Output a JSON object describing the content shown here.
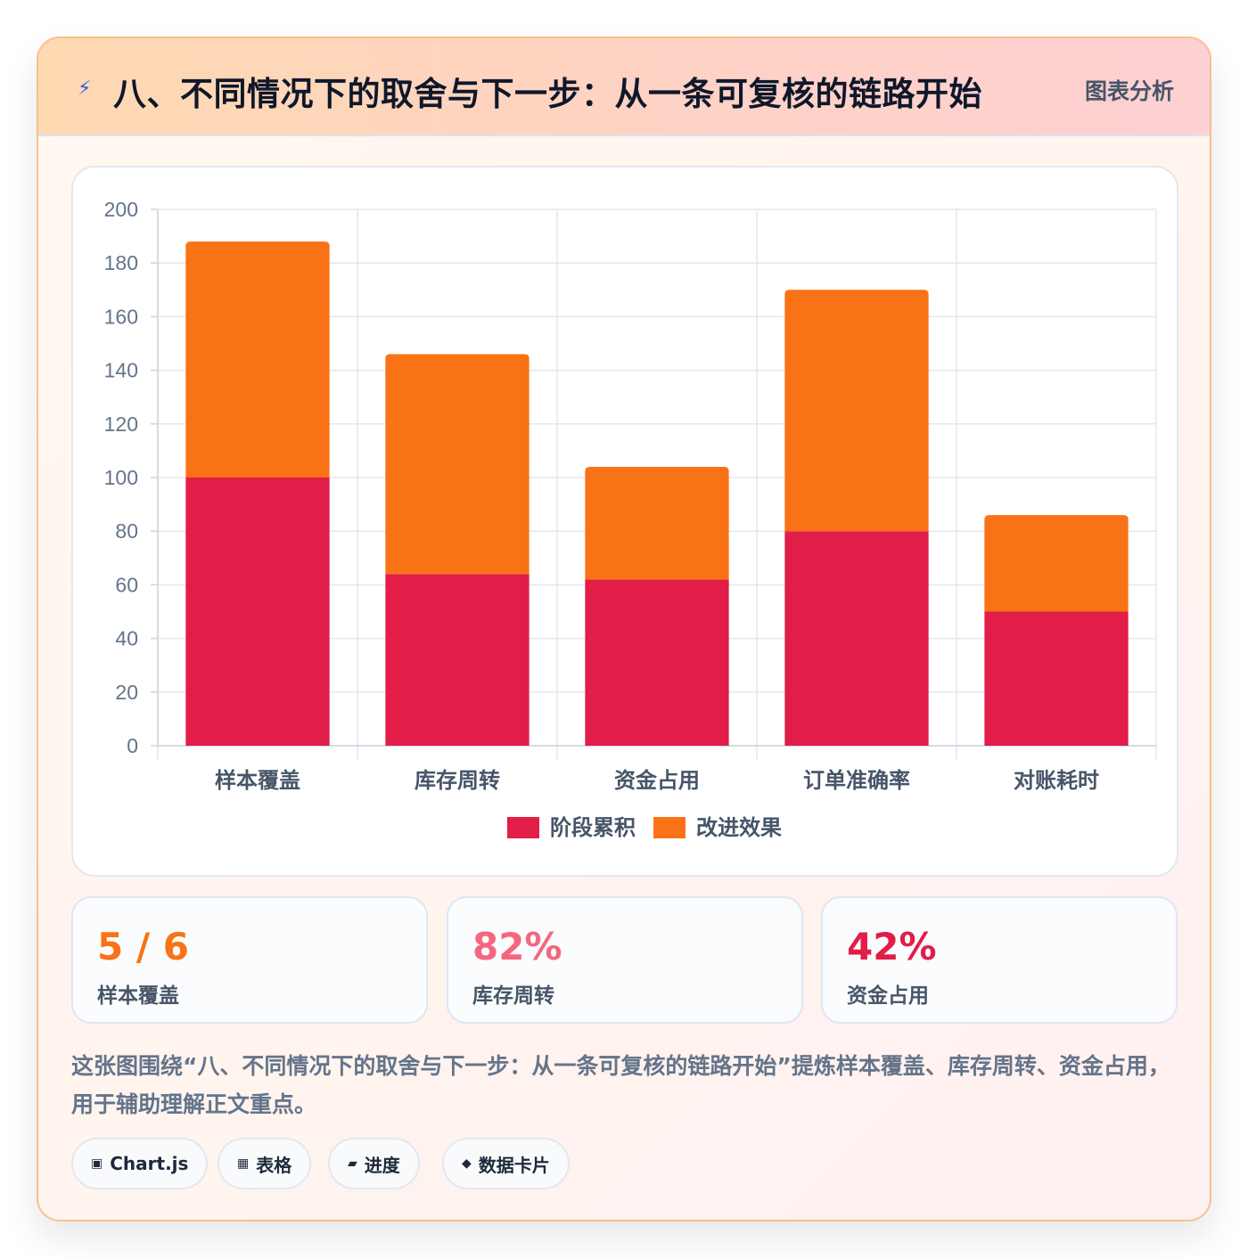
{
  "header": {
    "icon": "lightning-icon",
    "title": "八、不同情况下的取舍与下一步：从一条可复核的链路开始",
    "tag": "图表分析"
  },
  "chart_data": {
    "type": "bar",
    "stacked": true,
    "categories": [
      "样本覆盖",
      "库存周转",
      "资金占用",
      "订单准确率",
      "对账耗时"
    ],
    "series": [
      {
        "name": "阶段累积",
        "color": "#e11d48",
        "values": [
          100,
          64,
          62,
          80,
          50
        ]
      },
      {
        "name": "改进效果",
        "color": "#f97316",
        "values": [
          88,
          82,
          42,
          90,
          36
        ]
      }
    ],
    "ylim": [
      0,
      200
    ],
    "yticks": [
      0,
      20,
      40,
      60,
      80,
      100,
      120,
      140,
      160,
      180,
      200
    ],
    "grid": true,
    "legend": "bottom"
  },
  "stats": [
    {
      "value": "5 / 6",
      "label": "样本覆盖",
      "color": "#f97316"
    },
    {
      "value": "82%",
      "label": "库存周转",
      "color": "#f4677f"
    },
    {
      "value": "42%",
      "label": "资金占用",
      "color": "#e11d48"
    }
  ],
  "description": "这张图围绕“八、不同情况下的取舍与下一步：从一条可复核的链路开始”提炼样本覆盖、库存周转、资金占用，用于辅助理解正文重点。",
  "chips": [
    {
      "icon": "▣",
      "label": "Chart.js"
    },
    {
      "icon": "▦",
      "label": "表格"
    },
    {
      "icon": "▰",
      "label": "进度"
    },
    {
      "icon": "◆",
      "label": "数据卡片"
    }
  ]
}
